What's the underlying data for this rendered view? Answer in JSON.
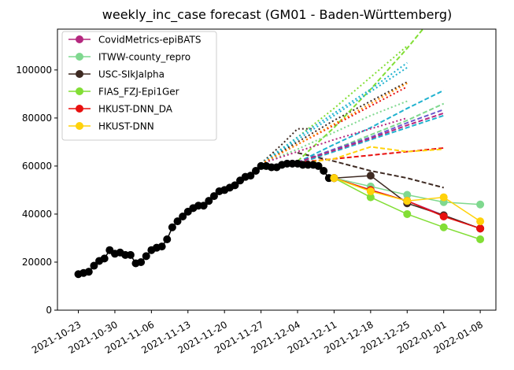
{
  "chart_data": {
    "type": "line",
    "title": "weekly_inc_case forecast (GM01 - Baden-Württemberg)",
    "xlabel": "",
    "ylabel": "",
    "ylim": [
      0,
      117000
    ],
    "xlim": [
      "2021-10-19",
      "2022-01-11"
    ],
    "yticks": [
      0,
      20000,
      40000,
      60000,
      80000,
      100000
    ],
    "xticks": [
      "2021-10-23",
      "2021-10-30",
      "2021-11-06",
      "2021-11-13",
      "2021-11-20",
      "2021-11-27",
      "2021-12-04",
      "2021-12-11",
      "2021-12-18",
      "2021-12-25",
      "2022-01-01",
      "2022-01-08"
    ],
    "grid": false,
    "legend_position": "top-left",
    "observed": {
      "color": "#000000",
      "x": [
        "2021-10-23",
        "2021-10-24",
        "2021-10-25",
        "2021-10-26",
        "2021-10-27",
        "2021-10-28",
        "2021-10-29",
        "2021-10-30",
        "2021-10-31",
        "2021-11-01",
        "2021-11-02",
        "2021-11-03",
        "2021-11-04",
        "2021-11-05",
        "2021-11-06",
        "2021-11-07",
        "2021-11-08",
        "2021-11-09",
        "2021-11-10",
        "2021-11-11",
        "2021-11-12",
        "2021-11-13",
        "2021-11-14",
        "2021-11-15",
        "2021-11-16",
        "2021-11-17",
        "2021-11-18",
        "2021-11-19",
        "2021-11-20",
        "2021-11-21",
        "2021-11-22",
        "2021-11-23",
        "2021-11-24",
        "2021-11-25",
        "2021-11-26",
        "2021-11-27",
        "2021-11-28",
        "2021-11-29",
        "2021-11-30",
        "2021-12-01",
        "2021-12-02",
        "2021-12-03",
        "2021-12-04",
        "2021-12-05",
        "2021-12-06",
        "2021-12-07",
        "2021-12-08",
        "2021-12-09",
        "2021-12-10",
        "2021-12-11"
      ],
      "values": [
        15000,
        15500,
        16000,
        18500,
        20500,
        21500,
        25000,
        23500,
        24000,
        23000,
        23000,
        19500,
        20000,
        22500,
        25000,
        26000,
        26500,
        29500,
        34500,
        37000,
        39000,
        41000,
        42500,
        43500,
        43500,
        45500,
        47500,
        49500,
        50000,
        51000,
        52000,
        54000,
        55500,
        56000,
        58000,
        60000,
        60000,
        59500,
        59500,
        60500,
        61000,
        61000,
        61000,
        60500,
        60500,
        60500,
        60000,
        58000,
        55000,
        55000
      ]
    },
    "series": [
      {
        "name": "CovidMetrics-epiBATS",
        "color": "#b5287f",
        "x": [
          "2021-12-11",
          "2021-12-18",
          "2021-12-25",
          "2022-01-01",
          "2022-01-08"
        ],
        "values": [
          55000,
          50000,
          45500,
          39500,
          34000
        ]
      },
      {
        "name": "ITWW-county_repro",
        "color": "#7fd88f",
        "x": [
          "2021-12-11",
          "2021-12-18",
          "2021-12-25",
          "2022-01-01",
          "2022-01-08"
        ],
        "values": [
          55000,
          51500,
          48000,
          45000,
          44000
        ]
      },
      {
        "name": "USC-SIkJalpha",
        "color": "#3e2a22",
        "x": [
          "2021-12-11",
          "2021-12-18",
          "2021-12-25",
          "2022-01-01",
          "2022-01-08"
        ],
        "values": [
          55000,
          56000,
          44500,
          39500,
          34000
        ]
      },
      {
        "name": "FIAS_FZJ-Epi1Ger",
        "color": "#82de35",
        "x": [
          "2021-12-11",
          "2021-12-18",
          "2021-12-25",
          "2022-01-01",
          "2022-01-08"
        ],
        "values": [
          55000,
          47000,
          40000,
          34500,
          29500
        ]
      },
      {
        "name": "HKUST-DNN_DA",
        "color": "#e8100f",
        "x": [
          "2021-12-11",
          "2021-12-18",
          "2021-12-25",
          "2022-01-01",
          "2022-01-08"
        ],
        "values": [
          55000,
          50000,
          45500,
          39000,
          34000
        ]
      },
      {
        "name": "HKUST-DNN",
        "color": "#ffd20a",
        "x": [
          "2021-12-11",
          "2021-12-18",
          "2021-12-25",
          "2022-01-01",
          "2022-01-08"
        ],
        "values": [
          55000,
          49500,
          45500,
          47000,
          37000
        ]
      }
    ],
    "forecasts": [
      {
        "color": "#3e2a22",
        "style": "dotted",
        "x": [
          "2021-11-27",
          "2021-12-04",
          "2021-12-11",
          "2021-12-18",
          "2021-12-25"
        ],
        "values": [
          61000,
          70000,
          79000,
          87000,
          95000
        ]
      },
      {
        "color": "#3e2a22",
        "style": "dotted",
        "x": [
          "2021-11-27",
          "2021-12-01",
          "2021-12-04",
          "2021-12-07"
        ],
        "values": [
          61000,
          69000,
          75500,
          75500
        ]
      },
      {
        "color": "#3e2a22",
        "style": "dashed",
        "x": [
          "2021-12-04",
          "2021-12-11",
          "2021-12-18",
          "2021-12-25",
          "2022-01-01"
        ],
        "values": [
          65500,
          62000,
          58000,
          55000,
          51000
        ]
      },
      {
        "color": "#82de35",
        "style": "dotted",
        "x": [
          "2021-11-27",
          "2021-12-04",
          "2021-12-11",
          "2021-12-18",
          "2021-12-25"
        ],
        "values": [
          61000,
          72000,
          84000,
          97000,
          110000
        ]
      },
      {
        "color": "#82de35",
        "style": "dashed",
        "x": [
          "2021-12-04",
          "2021-12-11",
          "2021-12-18",
          "2021-12-25",
          "2021-12-28"
        ],
        "values": [
          62000,
          76000,
          92000,
          109000,
          117000
        ]
      },
      {
        "color": "#7fd88f",
        "style": "dashed",
        "x": [
          "2021-12-04",
          "2021-12-11",
          "2021-12-18",
          "2021-12-25",
          "2022-01-01"
        ],
        "values": [
          61500,
          67000,
          73000,
          79000,
          86000
        ]
      },
      {
        "color": "#7fd88f",
        "style": "dotted",
        "x": [
          "2021-11-27",
          "2021-12-04",
          "2021-12-11",
          "2021-12-18",
          "2021-12-25"
        ],
        "values": [
          61000,
          67000,
          74000,
          81000,
          87000
        ]
      },
      {
        "color": "#1fb2cf",
        "style": "dashed",
        "x": [
          "2021-12-04",
          "2021-12-11",
          "2021-12-18",
          "2021-12-25",
          "2022-01-01"
        ],
        "values": [
          61500,
          69000,
          76000,
          84000,
          91500
        ]
      },
      {
        "color": "#1fb2cf",
        "style": "dashed",
        "x": [
          "2021-12-04",
          "2021-12-11",
          "2021-12-18",
          "2021-12-25",
          "2022-01-01"
        ],
        "values": [
          61000,
          66000,
          71000,
          76000,
          81000
        ]
      },
      {
        "color": "#1fb2cf",
        "style": "dotted",
        "x": [
          "2021-11-27",
          "2021-12-04",
          "2021-12-11",
          "2021-12-18",
          "2021-12-25"
        ],
        "values": [
          61000,
          71000,
          81000,
          91000,
          101000
        ]
      },
      {
        "color": "#1fb2cf",
        "style": "dotted",
        "x": [
          "2021-11-27",
          "2021-12-04",
          "2021-12-11",
          "2021-12-18",
          "2021-12-25"
        ],
        "values": [
          61000,
          72000,
          82000,
          92000,
          103000
        ]
      },
      {
        "color": "#6a5acd",
        "style": "dashed",
        "x": [
          "2021-12-04",
          "2021-12-11",
          "2021-12-18",
          "2021-12-25",
          "2022-01-01"
        ],
        "values": [
          61500,
          67000,
          72000,
          78000,
          83500
        ]
      },
      {
        "color": "#b5287f",
        "style": "dashed",
        "x": [
          "2021-12-04",
          "2021-12-11",
          "2021-12-18",
          "2021-12-25",
          "2022-01-01"
        ],
        "values": [
          61500,
          66500,
          71500,
          77000,
          82000
        ]
      },
      {
        "color": "#b5287f",
        "style": "dotted",
        "x": [
          "2021-11-27",
          "2021-12-04",
          "2021-12-11",
          "2021-12-18",
          "2021-12-25"
        ],
        "values": [
          61000,
          66000,
          71000,
          75500,
          80000
        ]
      },
      {
        "color": "#e8100f",
        "style": "dashed",
        "x": [
          "2021-12-04",
          "2021-12-11",
          "2021-12-18",
          "2021-12-25",
          "2022-01-01"
        ],
        "values": [
          61500,
          63000,
          64500,
          66000,
          67500
        ]
      },
      {
        "color": "#e8100f",
        "style": "dotted",
        "x": [
          "2021-11-27",
          "2021-12-04",
          "2021-12-11",
          "2021-12-18",
          "2021-12-25"
        ],
        "values": [
          61000,
          69000,
          77000,
          85000,
          93000
        ]
      },
      {
        "color": "#ffd20a",
        "style": "dashed",
        "x": [
          "2021-12-04",
          "2021-12-11",
          "2021-12-18",
          "2021-12-25",
          "2022-01-01"
        ],
        "values": [
          61000,
          63000,
          68000,
          66000,
          67000
        ]
      },
      {
        "color": "#ff8c00",
        "style": "dotted",
        "x": [
          "2021-11-27",
          "2021-12-04",
          "2021-12-11",
          "2021-12-18",
          "2021-12-25"
        ],
        "values": [
          61000,
          69000,
          77500,
          86000,
          94500
        ]
      }
    ]
  }
}
